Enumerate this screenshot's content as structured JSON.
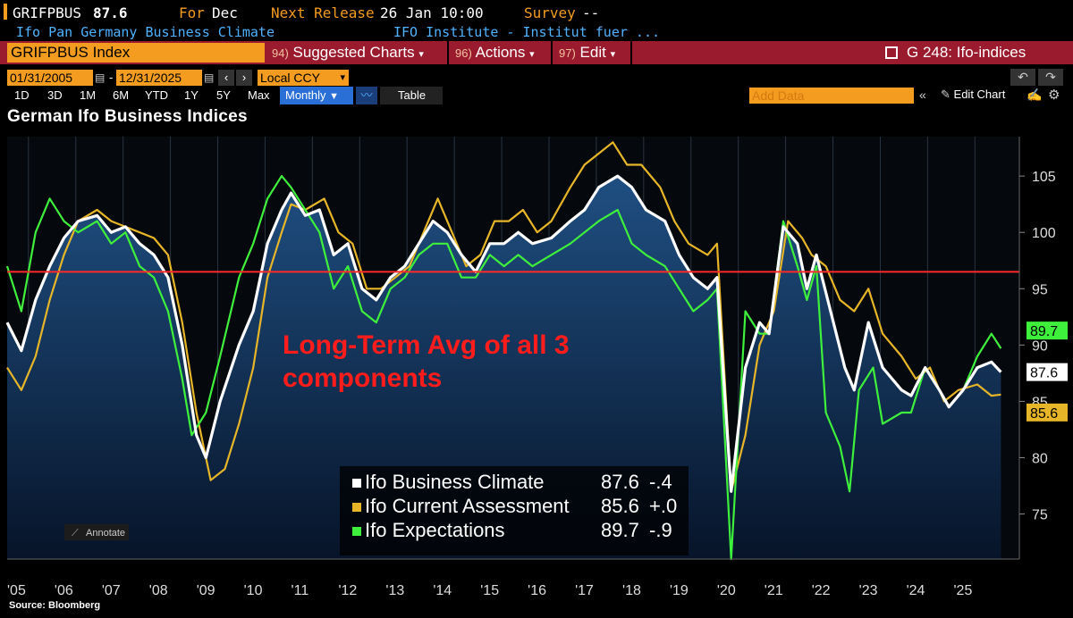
{
  "header": {
    "ticker": "GRIFPBUS",
    "last_value": "87.6",
    "for_label": "For",
    "for_value": "Dec",
    "next_release_label": "Next Release",
    "next_release_value": "26 Jan 10:00",
    "survey_label": "Survey",
    "survey_value": "--",
    "description": "Ifo Pan Germany Business Climate",
    "source_name": "IFO Institute - Institut fuer ..."
  },
  "toolbar": {
    "security": "GRIFPBUS Index",
    "suggested_num": "94)",
    "suggested_label": "Suggested Charts",
    "actions_num": "96)",
    "actions_label": "Actions",
    "edit_num": "97)",
    "edit_label": "Edit",
    "page_label": "G 248: Ifo-indices"
  },
  "controls": {
    "start_date": "01/31/2005",
    "end_date": "12/31/2025",
    "currency": "Local CCY",
    "periods": [
      "1D",
      "3D",
      "1M",
      "6M",
      "YTD",
      "1Y",
      "5Y",
      "Max"
    ],
    "frequency": "Monthly",
    "table_label": "Table",
    "add_data_placeholder": "Add Data",
    "edit_chart_label": "Edit Chart"
  },
  "annotate_label": "Annotate",
  "source_label": "Source: Bloomberg",
  "colors": {
    "climate": "#ffffff",
    "current": "#e7b628",
    "expectations": "#3ef03c",
    "average": "#ff2a2a",
    "annotation": "#ff1c1c",
    "accent": "#f39c1f"
  },
  "chart_data": {
    "type": "line",
    "title": "German Ifo Business Indices",
    "frequency": "monthly",
    "x_range": [
      2005.0,
      2026.0
    ],
    "ylim": [
      71,
      108.5
    ],
    "y_ticks": [
      75,
      80,
      85,
      90,
      95,
      100,
      105
    ],
    "x_tick_labels": [
      "'05",
      "'06",
      "'07",
      "'08",
      "'09",
      "'10",
      "'11",
      "'12",
      "'13",
      "'14",
      "'15",
      "'16",
      "'17",
      "'18",
      "'19",
      "'20",
      "'21",
      "'22",
      "'23",
      "'24",
      "'25"
    ],
    "reference_line": {
      "value": 96.5,
      "label": "Long-Term Avg of all 3 components"
    },
    "annotation_text": "Long-Term Avg of all 3 components",
    "series": [
      {
        "name": "Ifo Business Climate",
        "last": "87.6",
        "change": "-.4",
        "fill": true,
        "points": [
          [
            2005.0,
            92
          ],
          [
            2005.3,
            89.5
          ],
          [
            2005.6,
            94
          ],
          [
            2005.9,
            97
          ],
          [
            2006.2,
            99.5
          ],
          [
            2006.5,
            101
          ],
          [
            2006.9,
            101.5
          ],
          [
            2007.2,
            100
          ],
          [
            2007.5,
            100.5
          ],
          [
            2007.8,
            99
          ],
          [
            2008.1,
            98
          ],
          [
            2008.4,
            96
          ],
          [
            2008.7,
            90
          ],
          [
            2009.0,
            82
          ],
          [
            2009.2,
            80
          ],
          [
            2009.5,
            85
          ],
          [
            2009.9,
            90
          ],
          [
            2010.2,
            93
          ],
          [
            2010.5,
            99
          ],
          [
            2010.8,
            102
          ],
          [
            2011.0,
            103.5
          ],
          [
            2011.3,
            101.5
          ],
          [
            2011.6,
            102
          ],
          [
            2011.9,
            98
          ],
          [
            2012.2,
            99
          ],
          [
            2012.5,
            95
          ],
          [
            2012.8,
            94
          ],
          [
            2013.1,
            96
          ],
          [
            2013.4,
            97
          ],
          [
            2013.7,
            99
          ],
          [
            2014.0,
            101
          ],
          [
            2014.3,
            100
          ],
          [
            2014.6,
            98
          ],
          [
            2014.9,
            96.5
          ],
          [
            2015.2,
            99
          ],
          [
            2015.5,
            99
          ],
          [
            2015.8,
            100
          ],
          [
            2016.1,
            99
          ],
          [
            2016.5,
            99.5
          ],
          [
            2016.9,
            101
          ],
          [
            2017.2,
            102
          ],
          [
            2017.5,
            104
          ],
          [
            2017.9,
            105
          ],
          [
            2018.2,
            104
          ],
          [
            2018.5,
            102
          ],
          [
            2018.9,
            101
          ],
          [
            2019.2,
            98
          ],
          [
            2019.5,
            96
          ],
          [
            2019.8,
            95
          ],
          [
            2020.0,
            96
          ],
          [
            2020.3,
            77
          ],
          [
            2020.6,
            88
          ],
          [
            2020.9,
            92
          ],
          [
            2021.1,
            91
          ],
          [
            2021.4,
            100.5
          ],
          [
            2021.7,
            99
          ],
          [
            2021.9,
            95
          ],
          [
            2022.1,
            98
          ],
          [
            2022.4,
            93
          ],
          [
            2022.7,
            88
          ],
          [
            2022.9,
            86
          ],
          [
            2023.2,
            92
          ],
          [
            2023.5,
            88
          ],
          [
            2023.9,
            86
          ],
          [
            2024.1,
            85.5
          ],
          [
            2024.4,
            88
          ],
          [
            2024.7,
            86
          ],
          [
            2024.9,
            84.5
          ],
          [
            2025.2,
            86
          ],
          [
            2025.5,
            88
          ],
          [
            2025.8,
            88.5
          ],
          [
            2026.0,
            87.6
          ]
        ]
      },
      {
        "name": "Ifo Current Assessment",
        "last": "85.6",
        "change": "+.0",
        "fill": false,
        "points": [
          [
            2005.0,
            88
          ],
          [
            2005.3,
            86
          ],
          [
            2005.6,
            89
          ],
          [
            2005.9,
            94
          ],
          [
            2006.2,
            98
          ],
          [
            2006.5,
            101
          ],
          [
            2006.9,
            102
          ],
          [
            2007.2,
            101
          ],
          [
            2007.5,
            100.5
          ],
          [
            2007.8,
            100
          ],
          [
            2008.1,
            99.5
          ],
          [
            2008.4,
            98
          ],
          [
            2008.7,
            92
          ],
          [
            2009.0,
            84
          ],
          [
            2009.3,
            78
          ],
          [
            2009.6,
            79
          ],
          [
            2009.9,
            83
          ],
          [
            2010.2,
            88
          ],
          [
            2010.5,
            96
          ],
          [
            2010.8,
            100
          ],
          [
            2011.0,
            102.5
          ],
          [
            2011.3,
            102
          ],
          [
            2011.7,
            103
          ],
          [
            2012.0,
            100
          ],
          [
            2012.3,
            99
          ],
          [
            2012.6,
            95
          ],
          [
            2012.9,
            95
          ],
          [
            2013.2,
            96
          ],
          [
            2013.5,
            97
          ],
          [
            2013.8,
            100
          ],
          [
            2014.1,
            103
          ],
          [
            2014.4,
            100
          ],
          [
            2014.7,
            97
          ],
          [
            2015.0,
            98
          ],
          [
            2015.3,
            101
          ],
          [
            2015.6,
            101
          ],
          [
            2015.9,
            102
          ],
          [
            2016.2,
            100
          ],
          [
            2016.5,
            101
          ],
          [
            2016.9,
            104
          ],
          [
            2017.2,
            106
          ],
          [
            2017.5,
            107
          ],
          [
            2017.8,
            108
          ],
          [
            2018.1,
            106
          ],
          [
            2018.4,
            106
          ],
          [
            2018.8,
            104
          ],
          [
            2019.1,
            101
          ],
          [
            2019.4,
            99
          ],
          [
            2019.8,
            98
          ],
          [
            2020.0,
            99
          ],
          [
            2020.3,
            77
          ],
          [
            2020.6,
            82
          ],
          [
            2020.9,
            90
          ],
          [
            2021.2,
            93
          ],
          [
            2021.5,
            101
          ],
          [
            2021.8,
            99.5
          ],
          [
            2022.0,
            98
          ],
          [
            2022.3,
            97
          ],
          [
            2022.6,
            94
          ],
          [
            2022.9,
            93
          ],
          [
            2023.2,
            95
          ],
          [
            2023.5,
            91
          ],
          [
            2023.9,
            89
          ],
          [
            2024.2,
            87
          ],
          [
            2024.5,
            88
          ],
          [
            2024.8,
            85
          ],
          [
            2025.1,
            86
          ],
          [
            2025.5,
            86.5
          ],
          [
            2025.8,
            85.5
          ],
          [
            2026.0,
            85.6
          ]
        ]
      },
      {
        "name": "Ifo Expectations",
        "last": "89.7",
        "change": "-.9",
        "fill": false,
        "points": [
          [
            2005.0,
            97
          ],
          [
            2005.3,
            93
          ],
          [
            2005.6,
            100
          ],
          [
            2005.9,
            103
          ],
          [
            2006.2,
            101
          ],
          [
            2006.5,
            100
          ],
          [
            2006.9,
            101
          ],
          [
            2007.2,
            99
          ],
          [
            2007.5,
            100
          ],
          [
            2007.8,
            97
          ],
          [
            2008.1,
            96
          ],
          [
            2008.4,
            93
          ],
          [
            2008.7,
            87
          ],
          [
            2008.9,
            82
          ],
          [
            2009.2,
            84
          ],
          [
            2009.5,
            89
          ],
          [
            2009.9,
            96
          ],
          [
            2010.2,
            99
          ],
          [
            2010.5,
            103
          ],
          [
            2010.8,
            105
          ],
          [
            2011.0,
            104
          ],
          [
            2011.3,
            102
          ],
          [
            2011.6,
            100
          ],
          [
            2011.9,
            95
          ],
          [
            2012.2,
            97
          ],
          [
            2012.5,
            93
          ],
          [
            2012.8,
            92
          ],
          [
            2013.1,
            95
          ],
          [
            2013.4,
            96
          ],
          [
            2013.7,
            98
          ],
          [
            2014.0,
            99
          ],
          [
            2014.3,
            99
          ],
          [
            2014.6,
            96
          ],
          [
            2014.9,
            96
          ],
          [
            2015.2,
            98
          ],
          [
            2015.5,
            97
          ],
          [
            2015.8,
            98
          ],
          [
            2016.1,
            97
          ],
          [
            2016.5,
            98
          ],
          [
            2016.9,
            99
          ],
          [
            2017.2,
            100
          ],
          [
            2017.5,
            101
          ],
          [
            2017.9,
            102
          ],
          [
            2018.2,
            99
          ],
          [
            2018.5,
            98
          ],
          [
            2018.9,
            97
          ],
          [
            2019.2,
            95
          ],
          [
            2019.5,
            93
          ],
          [
            2019.8,
            94
          ],
          [
            2020.0,
            95
          ],
          [
            2020.3,
            71
          ],
          [
            2020.6,
            93
          ],
          [
            2020.9,
            91
          ],
          [
            2021.1,
            91
          ],
          [
            2021.4,
            101
          ],
          [
            2021.7,
            97
          ],
          [
            2021.9,
            94
          ],
          [
            2022.1,
            97
          ],
          [
            2022.3,
            84
          ],
          [
            2022.6,
            81
          ],
          [
            2022.8,
            77
          ],
          [
            2023.0,
            86
          ],
          [
            2023.3,
            88
          ],
          [
            2023.5,
            83
          ],
          [
            2023.9,
            84
          ],
          [
            2024.1,
            84
          ],
          [
            2024.4,
            88
          ],
          [
            2024.7,
            86
          ],
          [
            2024.9,
            84.5
          ],
          [
            2025.2,
            86
          ],
          [
            2025.5,
            89
          ],
          [
            2025.8,
            91
          ],
          [
            2026.0,
            89.7
          ]
        ]
      }
    ]
  }
}
